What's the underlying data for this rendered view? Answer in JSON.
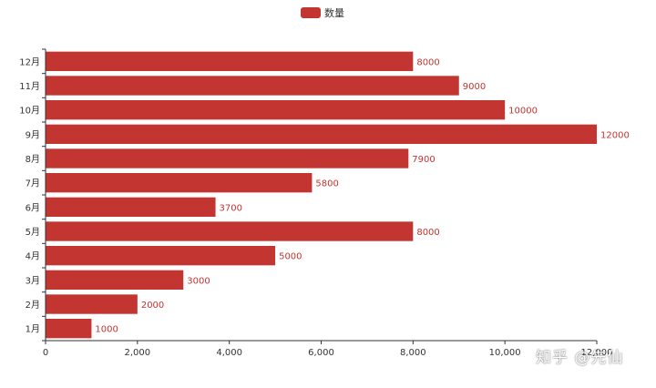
{
  "colors": {
    "bar": "#c23531",
    "axis": "#333333",
    "label": "#c23531"
  },
  "watermark": "知乎 @先仙",
  "chart_data": {
    "type": "bar",
    "orientation": "horizontal",
    "categories": [
      "1月",
      "2月",
      "3月",
      "4月",
      "5月",
      "6月",
      "7月",
      "8月",
      "9月",
      "10月",
      "11月",
      "12月"
    ],
    "series": [
      {
        "name": "数量",
        "values": [
          1000,
          2000,
          3000,
          5000,
          8000,
          3700,
          5800,
          7900,
          12000,
          10000,
          9000,
          8000
        ]
      }
    ],
    "xlim": [
      0,
      12000
    ],
    "xticks": [
      0,
      2000,
      4000,
      6000,
      8000,
      10000,
      12000
    ],
    "xtick_labels": [
      "0",
      "2,000",
      "4,000",
      "6,000",
      "8,000",
      "10,000",
      "12,000"
    ],
    "legend_position": "top-center",
    "grid": false
  }
}
